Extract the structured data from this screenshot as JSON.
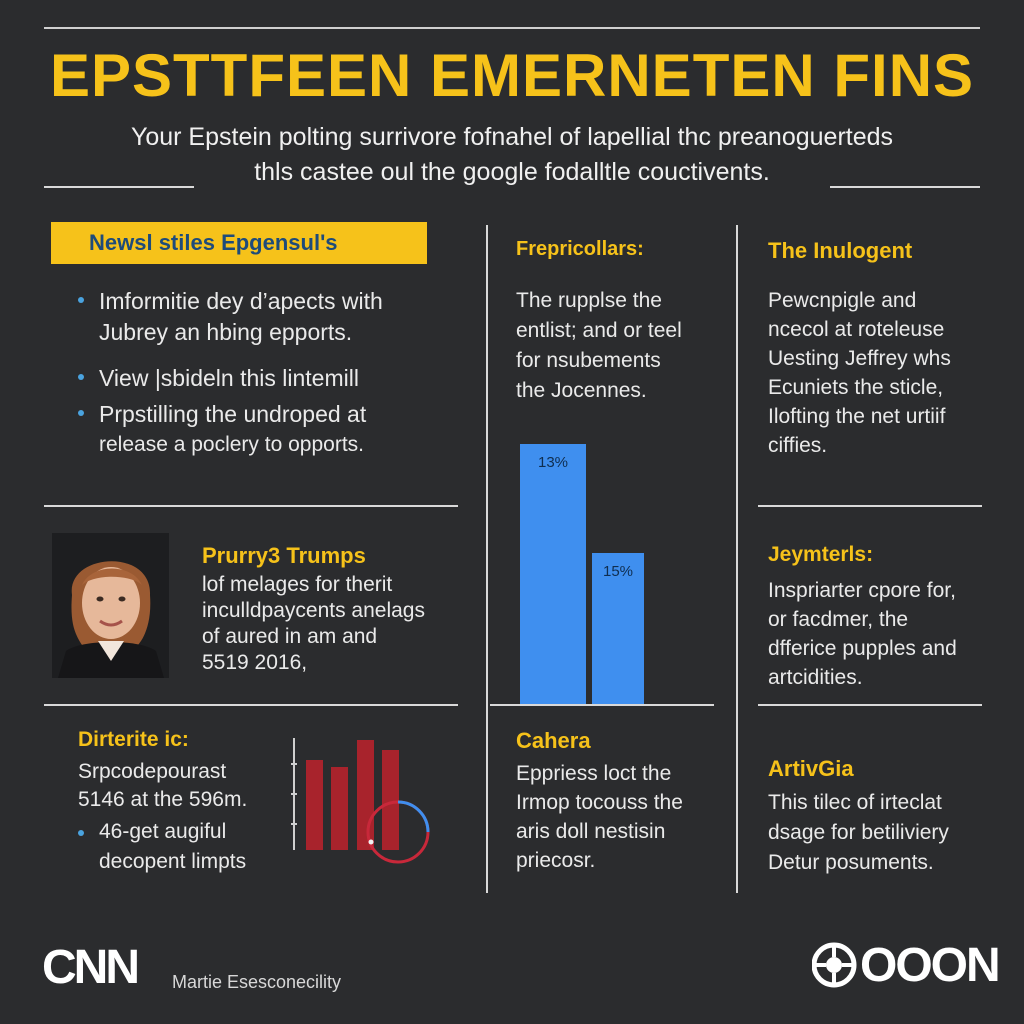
{
  "colors": {
    "background": "#2b2c2e",
    "accent_yellow": "#f6c21a",
    "bar_blue": "#3f8fef",
    "bar_red": "#a8232c"
  },
  "title": "EPSTTFEEN EMERNETEN FINS",
  "subtitle": {
    "line1": "Your Epstein polting surrivore fofnahel of lapellial thc preanoguerteds",
    "line2": "thls castee oul the google fodalltle couctivents."
  },
  "news": {
    "banner": "Newsl stiles Epgensul's",
    "items": [
      {
        "line1": "Imformitie dey d’apects with",
        "line2": "Jubrey an hbing epports."
      },
      {
        "line1": "View |sbideln this lintemill",
        "line2": ""
      },
      {
        "line1": "Prpstilling the undroped at",
        "line2": "release a poclery to opports."
      }
    ]
  },
  "profile": {
    "icon": "woman-portrait-icon",
    "heading": "Prurry3 Trumps",
    "lines": [
      "lof melages for therit",
      "inculldpaycents anelags",
      "of aured in am and",
      "5519 2016,"
    ]
  },
  "dirterite": {
    "heading": "Dirterite ic:",
    "lines": [
      "Srpcodepourast",
      "5146 at the 596m."
    ],
    "bullet": {
      "line1": "46-get augiful",
      "line2": "decopent limpts"
    }
  },
  "frepricollars": {
    "heading": "Frepricollars:",
    "lines": [
      "The rupplse the",
      "entlist; and or teel",
      "for nsubements",
      "the Jocennes."
    ]
  },
  "chart_data": {
    "type": "bar",
    "values": [
      13,
      15
    ],
    "data_labels": [
      "13%",
      "15%"
    ]
  },
  "cahera": {
    "heading": "Cahera",
    "lines": [
      "Eppriess loct the",
      "Irmop tocouss the",
      "aris doll nestisin",
      "priecosr."
    ]
  },
  "inulogent": {
    "heading": "The Inulogent",
    "lines": [
      "Pewcnpigle and",
      "ncecol at roteleuse",
      "Uesting Jeffrey whs",
      "Ecuniets the sticle,",
      "Ilofting the net urtiif",
      "ciffies."
    ]
  },
  "jeymterls": {
    "heading": "Jeymterls:",
    "lines": [
      "Inspriarter cpore for,",
      "or facdmer, the",
      "dfferice pupples and",
      "artcidities."
    ]
  },
  "artivgia": {
    "heading": "ArtivGia",
    "lines": [
      "This tilec of irteclat",
      "dsage for betiliviery",
      "Detur posuments."
    ]
  },
  "footer": {
    "left_logo": "CNN",
    "caption": "Martie Esesconecility",
    "right_logo": "OOON"
  }
}
